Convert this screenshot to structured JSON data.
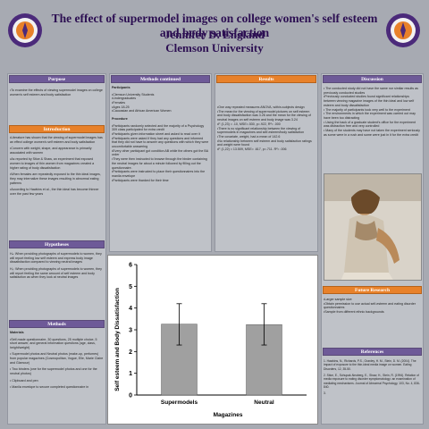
{
  "header": {
    "title": "The effect of supermodel images on college women's self esteem and body satisfaction",
    "author": "Jennifer D. England",
    "institution": "Clemson University"
  },
  "colors": {
    "accent_purple": "#6e5a98",
    "accent_orange": "#e8812a",
    "title_color": "#2c0f52",
    "background": "#a7aab2"
  },
  "purpose": {
    "heading": "Purpose",
    "text": "•To examine the effects of viewing supermodel images on college women's self esteem and body satisfaction"
  },
  "introduction": {
    "heading": "Introduction",
    "items": [
      "•Literature has shown that the viewing of supermodel images has an effect college women's self esteem and body satisfaction",
      "•Concern with weight, shape, and appearance is primarily associated with women",
      "•As reported by Stice & Shaw, an experiment that exposed women to images of thin women from magazines created a higher rating of body dissatisfaction",
      "•When females are repeatedly exposed to the thin ideal images, they may internalize these images resulting in abnormal eating patterns",
      "•According to Hawkins et al., the thin ideal has become thinner over the past few years"
    ]
  },
  "hypotheses": {
    "heading": "Hypotheses",
    "items": [
      "Hₐ: When providing photographs of supermodels to women, they will report feeling low self esteem and express body image dissatisfaction compared to viewing neutral images",
      "H₀: When providing photographs of supermodels to women, they will report feeling the same amount of self esteem and body satisfaction as when they look at neutral images"
    ]
  },
  "methods": {
    "heading": "Methods",
    "materials_label": "Materials",
    "items": [
      "•Self-made questionnaire- 30 questions, 25 multiple choice, 5 short answer, and general information questions (age, class, height/weight)",
      "• Supermodel photos and Neutral photos (make-up, perfumes) from popular magazines (Cosmopolitan, Vogue, Elle, Marie Claire and Glamour)",
      "• Two binders (one for the supermodel photos and one for the neutral photos)",
      "• Clipboard and pen",
      "• Manila envelope to secure completed questionnaire in"
    ]
  },
  "methods_continued": {
    "heading": "Methods continued",
    "participants_label": "Participants",
    "participants": [
      "•Clemson University Students",
      "•Undergraduates",
      "•Females",
      "•Ages 18-25",
      "•Caucasian and African American Women"
    ],
    "procedure_label": "Procedure",
    "procedure": [
      "•Participants randomly selected and the majority of a Psychology 309 class participated for extra credit",
      "•Participants given information sheet and asked to read over it",
      "•Participants were asked if they had any questions and informed that they did not have to answer any questions with which they were uncomfortable answering",
      "•Every other participant got condition AB while the others got the BA order",
      "•They were then instructed to browse through the binder containing the neutral images for about a minute followed by filling out the questionnaire.",
      "•Participants were instructed to place their questionnaires into the manila envelope",
      "•Participants were thanked for their time"
    ]
  },
  "results": {
    "heading": "Results",
    "items": [
      "•One way repeated measures ANOVA, within-subjects design",
      "•The mean for the viewing of supermodel pictures on self esteem and body dissatisfaction was 3.26 and the mean for the viewing of neutral images on self esteem and body image was 3.24",
      "•F (1,23) = .10, MSE=.530, p=.922, R²= .000",
      "•There is no significant relationship between the viewing of supermodels in magazines and self-esteem/body satisfaction",
      "•The covariate, weight, had a mean of 142.6",
      "•No relationship between self esteem and body satisfaction ratings and weight were found",
      "•F (1,22) = 13.509, MSE= .617, p=.711. R²= .006"
    ]
  },
  "discussion": {
    "heading": "Discussion",
    "items": [
      "• The conducted study did not have the same nor similar results as previously conducted studies",
      "•Previously conducted studies found significant relationships between viewing magazine images of the thin ideal and low self esteem and body dissatisfaction",
      "• The majority of participants took very well to the experiment",
      "• The environments in which the experiment was carried out may have been too distracting",
      "• Using the back of a graduate student's office for the experiment was distraction free and very controlled",
      "• Many of the students may have not taken the experiment seriously as some were in a rush and some were just in it for the extra credit"
    ]
  },
  "future_research": {
    "heading": "Future Research",
    "items": [
      "•Larger sample size",
      "•Obtain permission to use actual self-esteem and eating disorder questionnaires",
      "•Sample from different ethnic backgrounds"
    ]
  },
  "references": {
    "heading": "References",
    "items": [
      "1. Hawkins, N., Richards, P.S., Granley, H. M., Stein, D. M. (2004). The impact of exposure to the thin-ideal media image on women. Eating Disorders, 12, 35-50.",
      "2. Stice, E., Schupak-Neuberg, E., Shaw, H., Stein, R. (1994). Relation of media exposure to eating disorder symptomatology: an examination of mediating mechanisms. Journal of Abnormal Psychology, 103, No. 4, 836-840.",
      "3."
    ]
  },
  "chart_data": {
    "type": "bar",
    "categories": [
      "Supermodels",
      "Neutral"
    ],
    "values": [
      3.26,
      3.24
    ],
    "error_high": [
      4.2,
      4.2
    ],
    "error_low": [
      2.3,
      2.3
    ],
    "title": "",
    "xlabel": "Magazines",
    "ylabel": "Self esteem and Body Dissatisfaction",
    "ylim": [
      0,
      6
    ],
    "yticks": [
      "0",
      "1",
      "2",
      "3",
      "4",
      "5",
      "6"
    ],
    "bar_color": "#a0a0a0"
  }
}
